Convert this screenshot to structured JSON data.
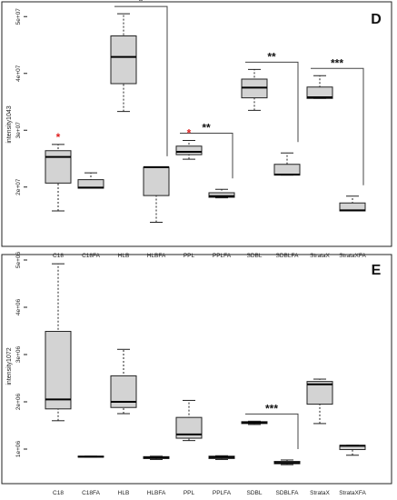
{
  "chart_data": [
    {
      "type": "boxplot",
      "panel_label": "D",
      "ylabel": "intensity1043",
      "ylim": [
        11000000,
        51000000
      ],
      "y_ticks": [
        20000000,
        30000000,
        40000000,
        50000000
      ],
      "y_tick_labels": [
        "2e+07",
        "3e+07",
        "4e+07",
        "5e+07"
      ],
      "grid": false,
      "categories": [
        "C18",
        "C18FA",
        "HLB",
        "HLBFA",
        "PPL",
        "PPLFA",
        "SDBL",
        "SDBLFA",
        "StrataX",
        "StrataXFA"
      ],
      "boxes": [
        {
          "category": "C18",
          "whisker_low": 15800000,
          "q1": 20700000,
          "median": 25300000,
          "q3": 26400000,
          "whisker_high": 27500000
        },
        {
          "category": "C18FA",
          "whisker_low": 19800000,
          "q1": 19800000,
          "median": 19900000,
          "q3": 21300000,
          "whisker_high": 22500000
        },
        {
          "category": "HLB",
          "whisker_low": 33300000,
          "q1": 38200000,
          "median": 42900000,
          "q3": 46600000,
          "whisker_high": 50500000
        },
        {
          "category": "HLBFA",
          "whisker_low": 13800000,
          "q1": 18500000,
          "median": 23500000,
          "q3": 23500000,
          "whisker_high": 23500000
        },
        {
          "category": "PPL",
          "whisker_low": 24900000,
          "q1": 25700000,
          "median": 26200000,
          "q3": 27200000,
          "whisker_high": 28200000
        },
        {
          "category": "PPLFA",
          "whisker_low": 18100000,
          "q1": 18200000,
          "median": 18400000,
          "q3": 19000000,
          "whisker_high": 19600000
        },
        {
          "category": "SDBL",
          "whisker_low": 33500000,
          "q1": 35700000,
          "median": 37500000,
          "q3": 39000000,
          "whisker_high": 40700000
        },
        {
          "category": "SDBLFA",
          "whisker_low": 22100000,
          "q1": 22100000,
          "median": 22200000,
          "q3": 24000000,
          "whisker_high": 26000000
        },
        {
          "category": "StrataX",
          "whisker_low": 35600000,
          "q1": 35600000,
          "median": 35800000,
          "q3": 37600000,
          "whisker_high": 39600000
        },
        {
          "category": "StrataXFA",
          "whisker_low": 15800000,
          "q1": 15800000,
          "median": 15900000,
          "q3": 17200000,
          "whisker_high": 18400000
        }
      ],
      "annotations": [
        {
          "from": "HLB",
          "to": "HLBFA",
          "label": "*"
        },
        {
          "from": "PPL",
          "to": "PPLFA",
          "label": "**"
        },
        {
          "from": "SDBL",
          "to": "SDBLFA",
          "label": "**"
        },
        {
          "from": "StrataX",
          "to": "StrataXFA",
          "label": "***"
        }
      ],
      "outlier_markers": [
        {
          "category": "C18",
          "label": "*",
          "color": "#e02020"
        },
        {
          "category": "PPL",
          "label": "*",
          "color": "#e02020"
        }
      ]
    },
    {
      "type": "boxplot",
      "panel_label": "E",
      "ylabel": "intensity1072",
      "ylim": [
        500000,
        5000000
      ],
      "y_ticks": [
        1000000,
        2000000,
        3000000,
        4000000,
        5000000
      ],
      "y_tick_labels": [
        "1e+06",
        "2e+06",
        "3e+06",
        "4e+06",
        "5e+06"
      ],
      "grid": false,
      "categories": [
        "C18",
        "C18FA",
        "HLB",
        "HLBFA",
        "PPL",
        "PPLFA",
        "SDBL",
        "SDBLFA",
        "StrataX",
        "StrataXFA"
      ],
      "boxes": [
        {
          "category": "C18",
          "whisker_low": 1600000,
          "q1": 1850000,
          "median": 2050000,
          "q3": 3490000,
          "whisker_high": 4920000
        },
        {
          "category": "C18FA",
          "whisker_low": 830000,
          "q1": 830000,
          "median": 840000,
          "q3": 850000,
          "whisker_high": 850000
        },
        {
          "category": "HLB",
          "whisker_low": 1750000,
          "q1": 1880000,
          "median": 2000000,
          "q3": 2550000,
          "whisker_high": 3110000
        },
        {
          "category": "HLBFA",
          "whisker_low": 780000,
          "q1": 800000,
          "median": 820000,
          "q3": 840000,
          "whisker_high": 850000
        },
        {
          "category": "PPL",
          "whisker_low": 1180000,
          "q1": 1230000,
          "median": 1310000,
          "q3": 1670000,
          "whisker_high": 2030000
        },
        {
          "category": "PPLFA",
          "whisker_low": 780000,
          "q1": 800000,
          "median": 830000,
          "q3": 850000,
          "whisker_high": 860000
        },
        {
          "category": "SDBL",
          "whisker_low": 1520000,
          "q1": 1540000,
          "median": 1560000,
          "q3": 1580000,
          "whisker_high": 1590000
        },
        {
          "category": "SDBLFA",
          "whisker_low": 670000,
          "q1": 690000,
          "median": 710000,
          "q3": 740000,
          "whisker_high": 770000
        },
        {
          "category": "StrataX",
          "whisker_low": 1540000,
          "q1": 1950000,
          "median": 2370000,
          "q3": 2430000,
          "whisker_high": 2480000
        },
        {
          "category": "StrataXFA",
          "whisker_low": 870000,
          "q1": 990000,
          "median": 1070000,
          "q3": 1080000,
          "whisker_high": 1080000
        }
      ],
      "annotations": [
        {
          "from": "SDBL",
          "to": "SDBLFA",
          "label": "***"
        }
      ],
      "outlier_markers": []
    }
  ],
  "colors": {
    "box_fill": "#d3d3d3",
    "box_stroke": "#222222",
    "bracket": "#444444",
    "frame": "#222222",
    "outlier_star": "#e02020"
  }
}
